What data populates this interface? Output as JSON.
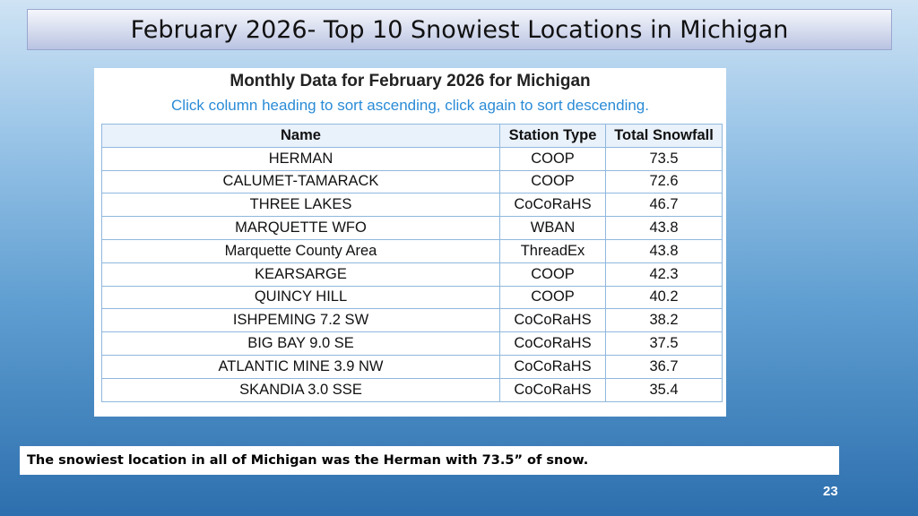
{
  "slide": {
    "title": "February 2026- Top 10 Snowiest Locations in Michigan",
    "caption": "The snowiest location in all of Michigan was the Herman with 73.5” of snow.",
    "page_number": "23"
  },
  "panel": {
    "heading": "Monthly Data for February 2026 for Michigan",
    "instructions": "Click column heading to sort ascending, click again to sort descending."
  },
  "table": {
    "headers": [
      "Name",
      "Station Type",
      "Total Snowfall"
    ],
    "rows": [
      [
        "HERMAN",
        "COOP",
        "73.5"
      ],
      [
        "CALUMET-TAMARACK",
        "COOP",
        "72.6"
      ],
      [
        "THREE LAKES",
        "CoCoRaHS",
        "46.7"
      ],
      [
        "MARQUETTE WFO",
        "WBAN",
        "43.8"
      ],
      [
        "Marquette County Area",
        "ThreadEx",
        "43.8"
      ],
      [
        "KEARSARGE",
        "COOP",
        "42.3"
      ],
      [
        "QUINCY HILL",
        "COOP",
        "40.2"
      ],
      [
        "ISHPEMING 7.2 SW",
        "CoCoRaHS",
        "38.2"
      ],
      [
        "BIG BAY 9.0 SE",
        "CoCoRaHS",
        "37.5"
      ],
      [
        "ATLANTIC MINE 3.9 NW",
        "CoCoRaHS",
        "36.7"
      ],
      [
        "SKANDIA 3.0 SSE",
        "CoCoRaHS",
        "35.4"
      ]
    ]
  }
}
